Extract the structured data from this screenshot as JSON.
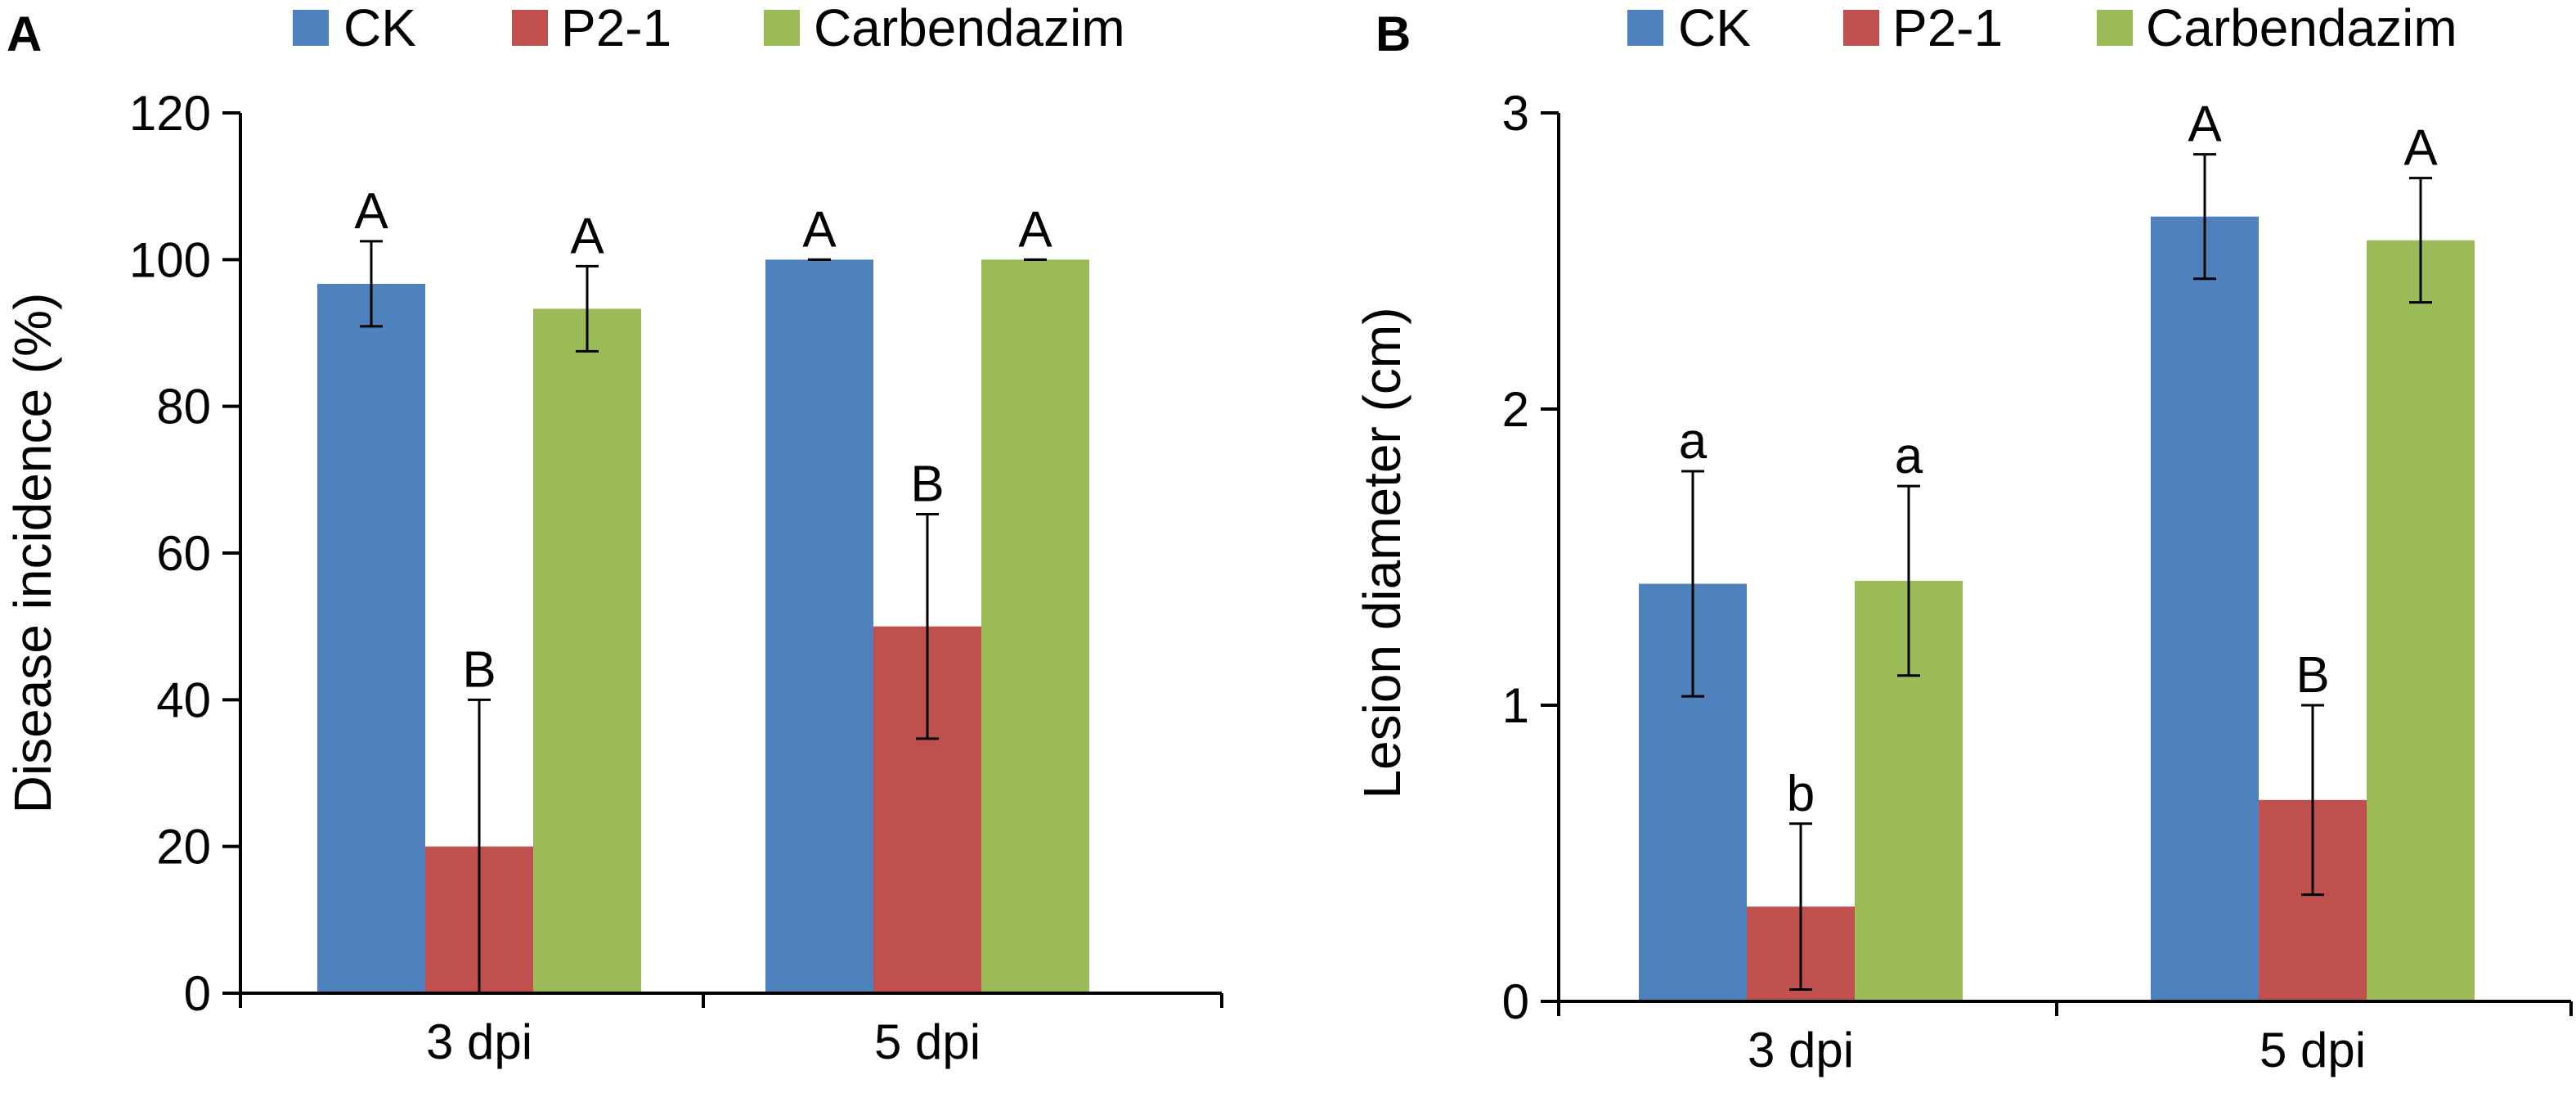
{
  "colors": {
    "CK": "#4f81bd",
    "P2-1": "#c0504d",
    "Carbendazim": "#9bbb59"
  },
  "chart_data": [
    {
      "panel": "A",
      "type": "bar",
      "title": "",
      "xlabel": "",
      "ylabel": "Disease incidence (%)",
      "ylim": [
        0,
        120
      ],
      "yticks": [
        "0",
        "20",
        "40",
        "60",
        "80",
        "100",
        "120"
      ],
      "categories": [
        "3 dpi",
        "5 dpi"
      ],
      "legend": [
        "CK",
        "P2-1",
        "Carbendazim"
      ],
      "legend_position": "top",
      "grid": false,
      "series": [
        {
          "name": "CK",
          "values": [
            96.7,
            100
          ],
          "errors": [
            5.8,
            0
          ],
          "labels": [
            "A",
            "A"
          ]
        },
        {
          "name": "P2-1",
          "values": [
            20,
            50
          ],
          "errors": [
            20,
            15.3
          ],
          "labels": [
            "B",
            "B"
          ]
        },
        {
          "name": "Carbendazim",
          "values": [
            93.3,
            100
          ],
          "errors": [
            5.8,
            0
          ],
          "labels": [
            "A",
            "A"
          ]
        }
      ]
    },
    {
      "panel": "B",
      "type": "bar",
      "title": "",
      "xlabel": "",
      "ylabel": "Lesion diameter (cm)",
      "ylim": [
        0,
        3
      ],
      "yticks": [
        "0",
        "1",
        "2",
        "3"
      ],
      "categories": [
        "3 dpi",
        "5 dpi"
      ],
      "legend": [
        "CK",
        "P2-1",
        "Carbendazim"
      ],
      "legend_position": "top",
      "grid": false,
      "series": [
        {
          "name": "CK",
          "values": [
            1.41,
            2.65
          ],
          "errors": [
            0.38,
            0.21
          ],
          "labels": [
            "a",
            "A"
          ]
        },
        {
          "name": "P2-1",
          "values": [
            0.32,
            0.68
          ],
          "errors": [
            0.28,
            0.32
          ],
          "labels": [
            "b",
            "B"
          ]
        },
        {
          "name": "Carbendazim",
          "values": [
            1.42,
            2.57
          ],
          "errors": [
            0.32,
            0.21
          ],
          "labels": [
            "a",
            "A"
          ]
        }
      ]
    }
  ]
}
